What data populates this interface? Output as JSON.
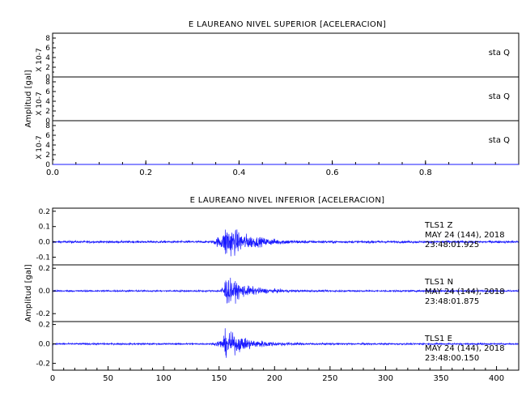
{
  "chart_data": [
    {
      "type": "line",
      "title": "E LAUREANO NIVEL SUPERIOR [ACELERACION]",
      "ylabel": "Amplitud [gal]",
      "xlim": [
        0.0,
        1.0
      ],
      "x_ticks": [
        0.0,
        0.2,
        0.4,
        0.6,
        0.8
      ],
      "x_tick_labels": [
        "0.0",
        "0.2",
        "0.4",
        "0.6",
        "0.8"
      ],
      "panels": [
        {
          "label": "sta   Q",
          "ylim": [
            0,
            9
          ],
          "y_ticks": [
            0,
            2,
            4,
            6,
            8
          ],
          "y_tick_labels": [
            "0",
            "2",
            "4",
            "6",
            "8"
          ],
          "scale_label": "X 10-7",
          "series": [
            {
              "x": [
                0.0,
                1.0
              ],
              "values": [
                0,
                0
              ]
            }
          ]
        },
        {
          "label": "sta   Q",
          "ylim": [
            0,
            9
          ],
          "y_ticks": [
            0,
            2,
            4,
            6,
            8
          ],
          "y_tick_labels": [
            "0",
            "2",
            "4",
            "6",
            "8"
          ],
          "scale_label": "X 10-7",
          "series": [
            {
              "x": [
                0.0,
                1.0
              ],
              "values": [
                0,
                0
              ]
            }
          ]
        },
        {
          "label": "sta   Q",
          "ylim": [
            0,
            9
          ],
          "y_ticks": [
            0,
            2,
            4,
            6,
            8
          ],
          "y_tick_labels": [
            "0",
            "2",
            "4",
            "6",
            "8"
          ],
          "scale_label": "X 10-7",
          "series": [
            {
              "x": [
                0.0,
                1.0
              ],
              "values": [
                0,
                0
              ]
            }
          ]
        }
      ]
    },
    {
      "type": "line",
      "title": "E LAUREANO NIVEL INFERIOR [ACELERACION]",
      "ylabel": "Amplitud [gal]",
      "xlim": [
        0,
        420
      ],
      "x_ticks": [
        0,
        50,
        100,
        150,
        200,
        250,
        300,
        350,
        400
      ],
      "x_tick_labels": [
        "0",
        "50",
        "100",
        "150",
        "200",
        "250",
        "300",
        "350",
        "400"
      ],
      "panels": [
        {
          "station": "TLS1    Z",
          "date": "MAY 24 (144), 2018",
          "time": "23:48:01.925",
          "ylim": [
            -0.15,
            0.22
          ],
          "y_ticks": [
            0.2,
            0.1,
            0.0,
            -0.1
          ],
          "y_tick_labels": [
            "0.2",
            "0.1",
            "0.0",
            "-0.1"
          ],
          "signal": {
            "noise": 0.012,
            "onset_s": 143,
            "peak_s": 155,
            "peak_amp": 0.2,
            "decay_s": 20
          }
        },
        {
          "station": "TLS1    N",
          "date": "MAY 24 (144), 2018",
          "time": "23:48:01.875",
          "ylim": [
            -0.27,
            0.23
          ],
          "y_ticks": [
            0.2,
            0.0,
            -0.2
          ],
          "y_tick_labels": [
            "0.2",
            "0.0",
            "-0.2"
          ],
          "signal": {
            "noise": 0.012,
            "onset_s": 150,
            "peak_s": 155,
            "peak_amp": 0.21,
            "decay_s": 18
          }
        },
        {
          "station": "TLS1    E",
          "date": "MAY 24 (144), 2018",
          "time": "23:48:00.150",
          "ylim": [
            -0.27,
            0.23
          ],
          "y_ticks": [
            0.2,
            0.0,
            -0.2
          ],
          "y_tick_labels": [
            "0.2",
            "0.0",
            "-0.2"
          ],
          "signal": {
            "noise": 0.014,
            "onset_s": 145,
            "peak_s": 155,
            "peak_amp": 0.23,
            "decay_s": 20
          }
        }
      ]
    }
  ],
  "colors": {
    "trace": "#1a1aff",
    "frame": "#000000",
    "background": "#ffffff"
  }
}
